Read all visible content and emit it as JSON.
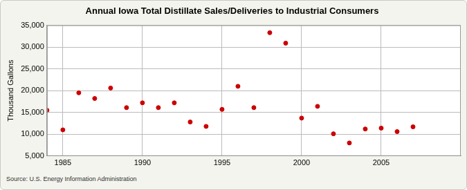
{
  "chart_data": {
    "type": "scatter",
    "title": "Annual Iowa Total Distillate Sales/Deliveries to Industrial Consumers",
    "y_label": "Thousand Gallons",
    "source": "Source: U.S. Energy Information Administration",
    "x": [
      1984,
      1985,
      1986,
      1987,
      1988,
      1989,
      1990,
      1991,
      1992,
      1993,
      1994,
      1995,
      1996,
      1997,
      1998,
      1999,
      2000,
      2001,
      2002,
      2003,
      2004,
      2005,
      2006,
      2007
    ],
    "values": [
      15500,
      11000,
      19500,
      18200,
      20600,
      16100,
      17200,
      16100,
      17200,
      12800,
      11800,
      15700,
      21000,
      16100,
      33300,
      30900,
      13700,
      16400,
      10100,
      8000,
      11200,
      11400,
      10600,
      11700
    ],
    "color": "#cc0000",
    "marker": "circle",
    "xlim": [
      1984,
      2010
    ],
    "xticks": [
      1985,
      1990,
      1995,
      2000,
      2005
    ],
    "ylim": [
      5000,
      35000
    ],
    "yticks": [
      {
        "value": 5000,
        "label": "5,000"
      },
      {
        "value": 10000,
        "label": "10,000"
      },
      {
        "value": 15000,
        "label": "15,000"
      },
      {
        "value": 20000,
        "label": "20,000"
      },
      {
        "value": 25000,
        "label": "25,000"
      },
      {
        "value": 30000,
        "label": "30,000"
      },
      {
        "value": 35000,
        "label": "35,000"
      }
    ],
    "grid": true
  }
}
